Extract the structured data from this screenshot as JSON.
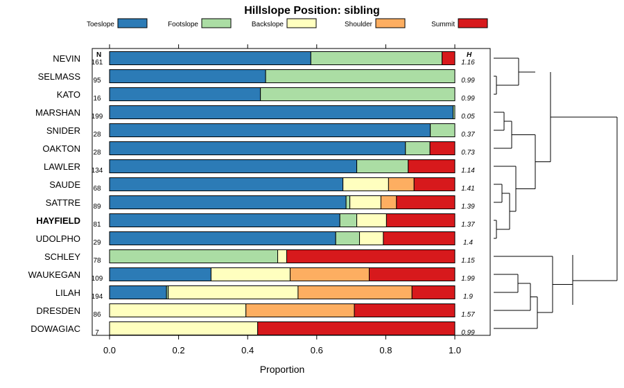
{
  "chart_data": {
    "type": "bar",
    "orientation": "horizontal",
    "stacked": true,
    "title": "Hillslope Position: sibling",
    "xlabel": "Proportion",
    "xlim": [
      0,
      1
    ],
    "x_ticks": [
      "0.0",
      "0.2",
      "0.4",
      "0.6",
      "0.8",
      "1.0"
    ],
    "x_tick_values": [
      0,
      0.2,
      0.4,
      0.6,
      0.8,
      1.0
    ],
    "n_header": "N",
    "h_header": "H",
    "legend": [
      {
        "name": "Toeslope",
        "color": "#2c7bb6"
      },
      {
        "name": "Footslope",
        "color": "#abdda4"
      },
      {
        "name": "Backslope",
        "color": "#ffffbf"
      },
      {
        "name": "Shoulder",
        "color": "#fdae61"
      },
      {
        "name": "Summit",
        "color": "#d7191c"
      }
    ],
    "categories": [
      "NEVIN",
      "SELMASS",
      "KATO",
      "MARSHAN",
      "SNIDER",
      "OAKTON",
      "LAWLER",
      "SAUDE",
      "SATTRE",
      "HAYFIELD",
      "UDOLPHO",
      "SCHLEY",
      "WAUKEGAN",
      "LILAH",
      "DRESDEN",
      "DOWAGIAC"
    ],
    "highlight": "HAYFIELD",
    "n": [
      "161",
      "95",
      "16",
      "199",
      "28",
      "28",
      "134",
      "68",
      "89",
      "81",
      "29",
      "78",
      "109",
      "194",
      "86",
      "7"
    ],
    "h": [
      "1.16",
      "0.99",
      "0.99",
      "0.05",
      "0.37",
      "0.73",
      "1.14",
      "1.41",
      "1.39",
      "1.37",
      "1.4",
      "1.15",
      "1.99",
      "1.9",
      "1.57",
      "0.99"
    ],
    "series": [
      {
        "name": "Toeslope",
        "values": [
          0.583,
          0.452,
          0.437,
          0.995,
          0.929,
          0.857,
          0.716,
          0.676,
          0.685,
          0.667,
          0.655,
          0.0,
          0.294,
          0.165,
          0.0,
          0.0
        ]
      },
      {
        "name": "Footslope",
        "values": [
          0.38,
          0.548,
          0.563,
          0.005,
          0.071,
          0.071,
          0.149,
          0.0,
          0.011,
          0.049,
          0.069,
          0.487,
          0.0,
          0.005,
          0.0,
          0.0
        ]
      },
      {
        "name": "Backslope",
        "values": [
          0.0,
          0.0,
          0.0,
          0.0,
          0.0,
          0.0,
          0.0,
          0.132,
          0.09,
          0.086,
          0.069,
          0.026,
          0.229,
          0.376,
          0.395,
          0.429
        ]
      },
      {
        "name": "Shoulder",
        "values": [
          0.0,
          0.0,
          0.0,
          0.0,
          0.0,
          0.0,
          0.0,
          0.074,
          0.045,
          0.0,
          0.0,
          0.0,
          0.229,
          0.33,
          0.314,
          0.0
        ]
      },
      {
        "name": "Summit",
        "values": [
          0.037,
          0.0,
          0.0,
          0.0,
          0.0,
          0.072,
          0.135,
          0.118,
          0.169,
          0.198,
          0.207,
          0.487,
          0.248,
          0.124,
          0.291,
          0.571
        ]
      }
    ]
  }
}
